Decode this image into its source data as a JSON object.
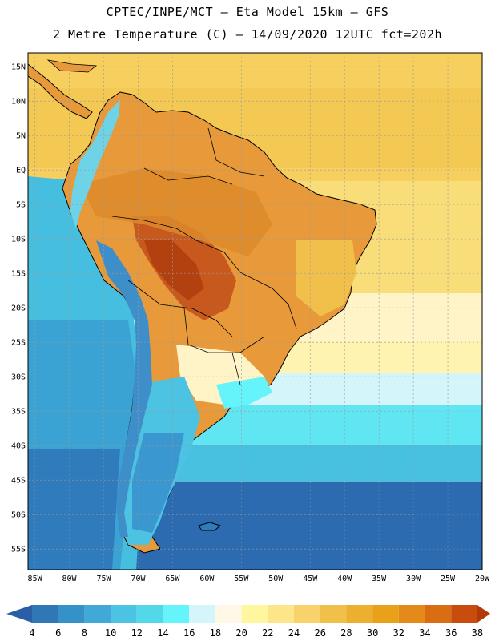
{
  "header": {
    "line1": "CPTEC/INPE/MCT –  Eta Model 15km – GFS",
    "line2": "2 Metre Temperature (C) – 14/09/2020 12UTC fct=202h"
  },
  "map": {
    "lon_range": [
      -86,
      -20
    ],
    "lat_range": [
      -58,
      17
    ],
    "lat_labels": [
      "15N",
      "10N",
      "5N",
      "EQ",
      "5S",
      "10S",
      "15S",
      "20S",
      "25S",
      "30S",
      "35S",
      "40S",
      "45S",
      "50S",
      "55S"
    ],
    "lon_labels": [
      "85W",
      "80W",
      "75W",
      "70W",
      "65W",
      "60W",
      "55W",
      "50W",
      "45W",
      "40W",
      "35W",
      "30W",
      "25W",
      "20W"
    ]
  },
  "colorbar": {
    "labels": [
      "4",
      "6",
      "8",
      "10",
      "12",
      "14",
      "16",
      "18",
      "20",
      "22",
      "24",
      "26",
      "28",
      "30",
      "32",
      "34",
      "36",
      "38"
    ],
    "colors": [
      "#2a5fa5",
      "#2f77b5",
      "#3592c8",
      "#40a9d8",
      "#4cc3e3",
      "#53d8ea",
      "#66f4fb",
      "#d4f6fb",
      "#fff8e6",
      "#fff79e",
      "#fde68a",
      "#f8d36c",
      "#f1c04a",
      "#ecb02e",
      "#e9a11a",
      "#e38a1a",
      "#d96d12",
      "#c84c0e",
      "#b23a0a"
    ]
  },
  "colors": {
    "ocean_cold": "#2a5fa5",
    "ocean_cool": "#4cc3e3",
    "ocean_warm": "#f7d974",
    "land_hot": "#e89a3a",
    "land_very_hot": "#c8591e",
    "andes": "#6fd3e8"
  }
}
